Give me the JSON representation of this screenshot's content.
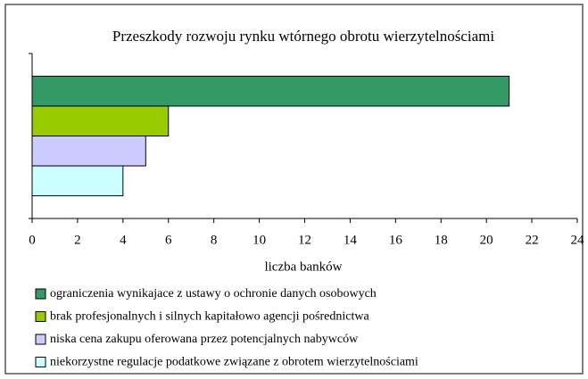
{
  "chart_data": {
    "type": "bar",
    "orientation": "horizontal",
    "title": "Przeszkody rozwoju rynku wtórnego obrotu wierzytelnościami",
    "xlabel": "liczba banków",
    "categories": [
      null
    ],
    "series": [
      {
        "name": "ograniczenia wynikajace z ustawy o ochronie danych osobowych",
        "color": "#339966",
        "values": [
          21
        ]
      },
      {
        "name": "brak profesjonalnych i silnych kapitałowo agencji pośrednictwa",
        "color": "#99cc00",
        "values": [
          6
        ]
      },
      {
        "name": "niska cena zakupu oferowana przez potencjalnych nabywców",
        "color": "#ccccff",
        "values": [
          5
        ]
      },
      {
        "name": "niekorzystne regulacje podatkowe związane z obrotem wierzytelnościami",
        "color": "#ccffff",
        "values": [
          4
        ]
      }
    ],
    "xlim": [
      0,
      24
    ],
    "xticks": [
      0,
      2,
      4,
      6,
      8,
      10,
      12,
      14,
      16,
      18,
      20,
      22,
      24
    ],
    "grid": false,
    "legend": "bottom"
  }
}
